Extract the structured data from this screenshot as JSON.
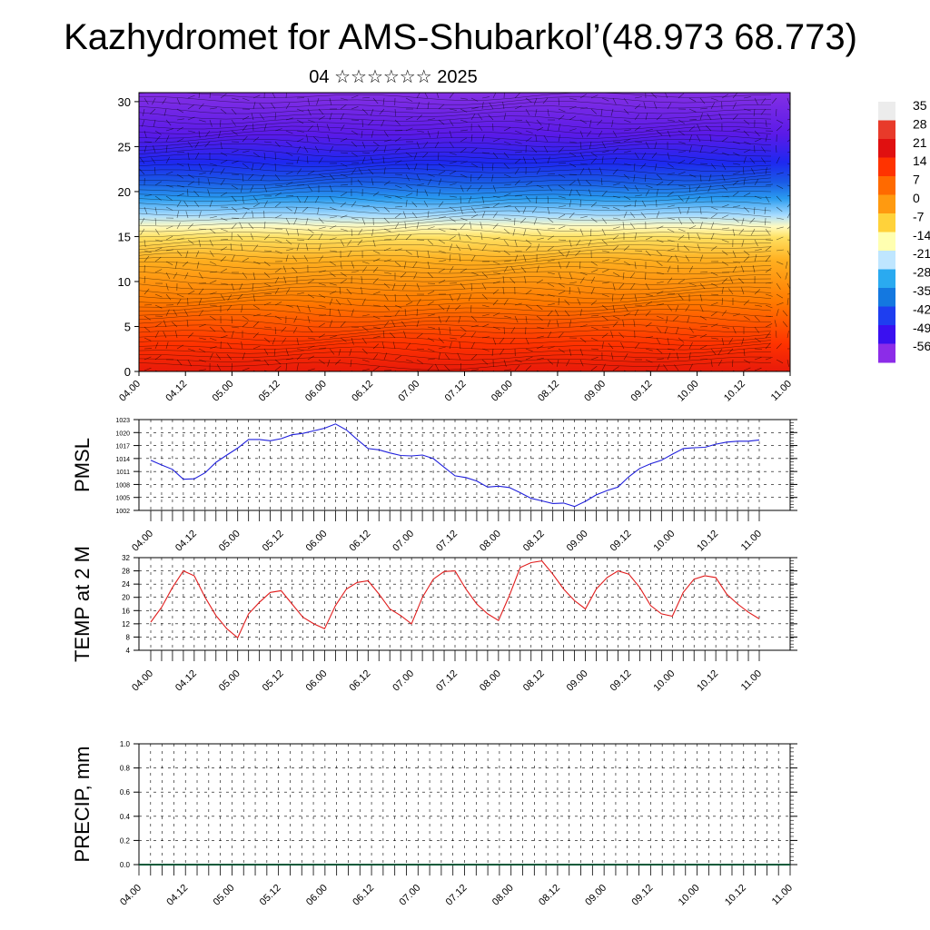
{
  "title": "Kazhydromet for AMS-Shubarkol’(48.973 68.773)",
  "subtitle": "04 ☆☆☆☆☆☆ 2025",
  "time_labels": [
    "04.00",
    "04.12",
    "05.00",
    "05.12",
    "06.00",
    "06.12",
    "07.00",
    "07.12",
    "08.00",
    "08.12",
    "09.00",
    "09.12",
    "10.00",
    "10.12",
    "11.00"
  ],
  "chart_data": [
    {
      "type": "heatmap",
      "name": "upper-air-section",
      "y_ticks": [
        0,
        5,
        10,
        15,
        20,
        25,
        30
      ],
      "ylim": [
        0,
        31
      ],
      "overlay": "wind-barbs",
      "colorbar": {
        "labels": [
          "35",
          "28",
          "21",
          "14",
          "7",
          "0",
          "-7",
          "-14",
          "-21",
          "-28",
          "-35",
          "-42",
          "-49",
          "-56"
        ],
        "colors": [
          "#ececec",
          "#e83a2a",
          "#e01010",
          "#ff3300",
          "#ff6a00",
          "#ff9a10",
          "#ffd23a",
          "#ffffb0",
          "#bfe6ff",
          "#2aaaf0",
          "#1478e0",
          "#1e3ef0",
          "#3a10f0",
          "#8c2ce8"
        ]
      }
    },
    {
      "type": "line",
      "name": "pmsl",
      "ylabel": "PMSL",
      "ylim": [
        1002,
        1023
      ],
      "y_ticks": [
        1002,
        1005,
        1008,
        1011,
        1014,
        1017,
        1020,
        1023
      ],
      "color": "#1f1fdc",
      "x_start": 0.5,
      "values": [
        1013.6,
        1012.5,
        1011.5,
        1009.2,
        1009.3,
        1010.7,
        1013.1,
        1014.8,
        1016.4,
        1018.4,
        1018.4,
        1018.1,
        1018.6,
        1019.5,
        1019.8,
        1020.4,
        1021.0,
        1022.0,
        1020.6,
        1018.4,
        1016.3,
        1016.0,
        1015.3,
        1014.7,
        1014.6,
        1014.8,
        1014.0,
        1012.0,
        1010.0,
        1009.6,
        1008.8,
        1007.4,
        1007.6,
        1007.3,
        1006.1,
        1004.8,
        1004.2,
        1003.6,
        1003.7,
        1002.9,
        1004.1,
        1005.6,
        1006.6,
        1007.4,
        1009.8,
        1011.7,
        1012.8,
        1013.6,
        1015.0,
        1016.3,
        1016.5,
        1016.6,
        1017.3,
        1017.8,
        1018.0,
        1018.0,
        1018.3
      ]
    },
    {
      "type": "line",
      "name": "temp-2m",
      "ylabel": "TEMP at 2 M",
      "ylim": [
        4,
        32
      ],
      "y_ticks": [
        4,
        8,
        12,
        16,
        20,
        24,
        28,
        32
      ],
      "color": "#e01c1c",
      "x_start": 0.5,
      "values": [
        12.5,
        17.0,
        23.0,
        28.0,
        26.5,
        20.0,
        14.5,
        10.5,
        7.8,
        15.0,
        18.5,
        21.5,
        22.0,
        18.0,
        14.0,
        12.0,
        10.5,
        17.5,
        22.5,
        24.5,
        25.0,
        21.0,
        16.5,
        14.5,
        12.0,
        20.0,
        25.5,
        27.8,
        28.0,
        22.5,
        18.0,
        15.0,
        13.0,
        20.5,
        29.0,
        30.5,
        31.0,
        27.0,
        22.5,
        19.0,
        16.5,
        22.5,
        26.0,
        28.0,
        27.0,
        23.0,
        17.5,
        15.0,
        14.3,
        21.5,
        25.5,
        26.5,
        26.0,
        21.0,
        18.0,
        15.5,
        13.5
      ]
    },
    {
      "type": "line",
      "name": "precip",
      "ylabel": "PRECIP, mm",
      "ylim": [
        0.0,
        1.0
      ],
      "y_ticks": [
        "0.0",
        "0.2",
        "0.4",
        "0.6",
        "0.8",
        "1.0"
      ],
      "color": "#0a5a3a",
      "values": []
    }
  ]
}
